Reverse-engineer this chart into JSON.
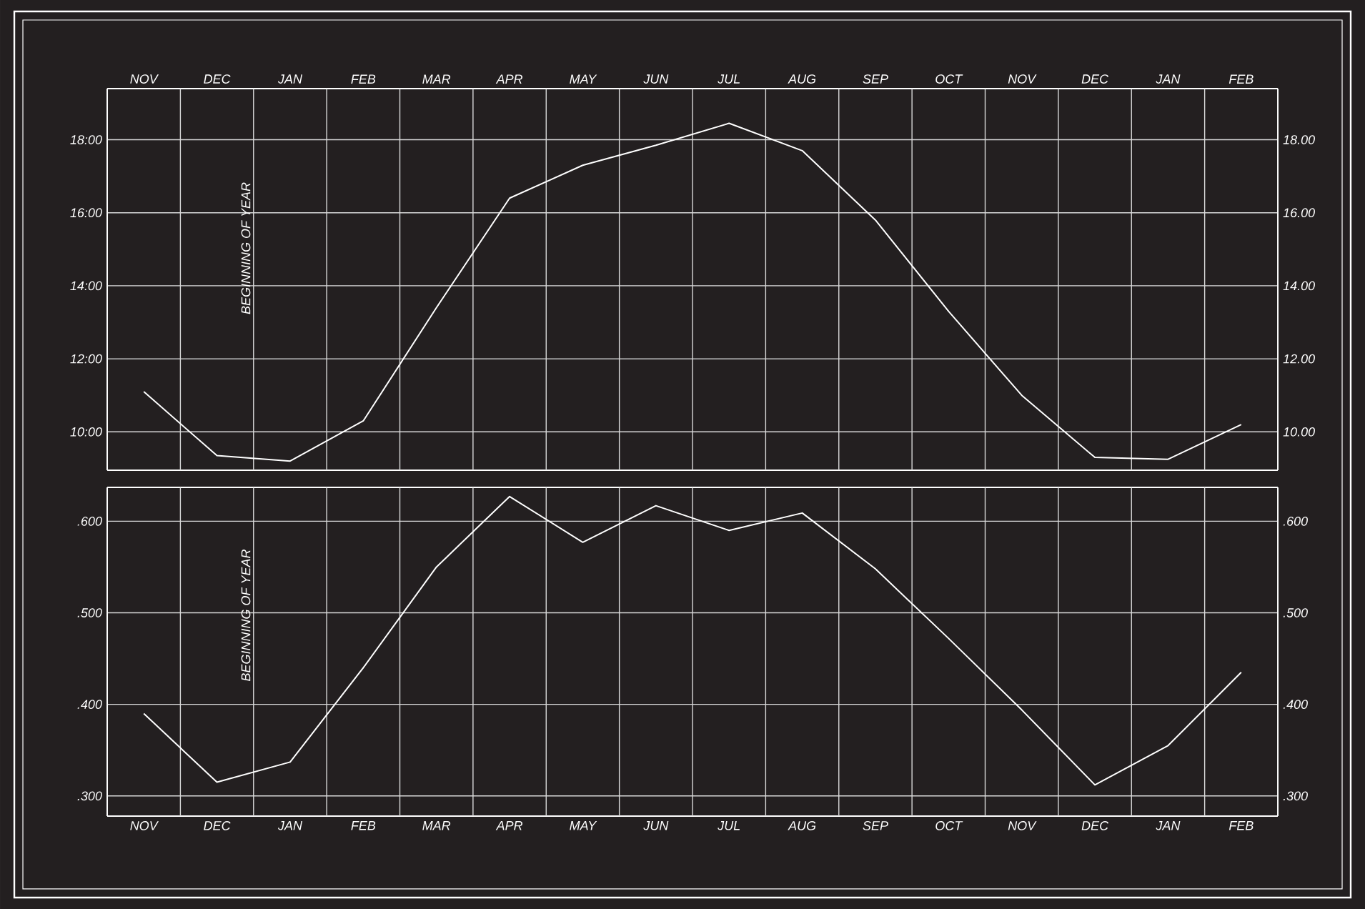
{
  "chart_data": [
    {
      "type": "line",
      "categories": [
        "NOV",
        "DEC",
        "JAN",
        "FEB",
        "MAR",
        "APR",
        "MAY",
        "JUN",
        "JUL",
        "AUG",
        "SEP",
        "OCT",
        "NOV",
        "DEC",
        "JAN",
        "FEB"
      ],
      "ylim": [
        8.95,
        19.4
      ],
      "yticks": [
        {
          "value": 10,
          "label": "10:00"
        },
        {
          "value": 12,
          "label": "12:00"
        },
        {
          "value": 14,
          "label": "14:00"
        },
        {
          "value": 16,
          "label": "16:00"
        },
        {
          "value": 18,
          "label": "18:00"
        }
      ],
      "y2lim": [
        8.95,
        19.4
      ],
      "y2ticks": [
        {
          "value": 10,
          "label": "10.00"
        },
        {
          "value": 12,
          "label": "12.00"
        },
        {
          "value": 14,
          "label": "14.00"
        },
        {
          "value": 16,
          "label": "16.00"
        },
        {
          "value": 18,
          "label": "18.00"
        }
      ],
      "grid": true,
      "annotations": [
        "BEGINNING OF YEAR"
      ],
      "series": [
        {
          "color": "#ffffff",
          "values": [
            11.1,
            9.35,
            9.2,
            10.3,
            13.4,
            16.4,
            17.3,
            17.85,
            18.45,
            17.7,
            15.8,
            13.3,
            11.0,
            9.3,
            9.25,
            10.2
          ]
        }
      ]
    },
    {
      "type": "line",
      "categories": [
        "NOV",
        "DEC",
        "JAN",
        "FEB",
        "MAR",
        "APR",
        "MAY",
        "JUN",
        "JUL",
        "AUG",
        "SEP",
        "OCT",
        "NOV",
        "DEC",
        "JAN",
        "FEB"
      ],
      "ylim": [
        0.278,
        0.637
      ],
      "yticks": [
        {
          "value": 0.3,
          "label": ".300"
        },
        {
          "value": 0.4,
          "label": ".400"
        },
        {
          "value": 0.5,
          "label": ".500"
        },
        {
          "value": 0.6,
          "label": ".600"
        }
      ],
      "y2lim": [
        0.278,
        0.637
      ],
      "y2ticks": [
        {
          "value": 0.3,
          "label": ".300"
        },
        {
          "value": 0.4,
          "label": ".400"
        },
        {
          "value": 0.5,
          "label": ".500"
        },
        {
          "value": 0.6,
          "label": ".600"
        }
      ],
      "grid": true,
      "annotations": [
        "BEGINNING OF YEAR"
      ],
      "series": [
        {
          "color": "#ffffff",
          "values": [
            0.39,
            0.315,
            0.337,
            0.44,
            0.55,
            0.627,
            0.577,
            0.617,
            0.59,
            0.609,
            0.548,
            0.472,
            0.394,
            0.312,
            0.355,
            0.435
          ]
        }
      ]
    }
  ]
}
